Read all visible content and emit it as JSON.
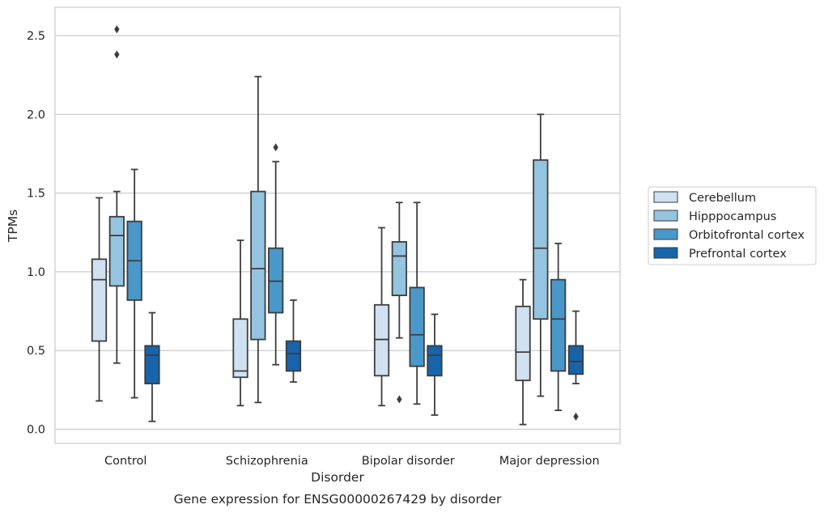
{
  "chart_data": {
    "type": "box",
    "caption": "Gene expression for ENSG00000267429 by disorder",
    "xlabel": "Disorder",
    "ylabel": "TPMs",
    "ylim": [
      -0.09,
      2.68
    ],
    "yticks": [
      0.0,
      0.5,
      1.0,
      1.5,
      2.0,
      2.5
    ],
    "ytick_labels": [
      "0.0",
      "0.5",
      "1.0",
      "1.5",
      "2.0",
      "2.5"
    ],
    "grid": "horizontal",
    "legend_position": "right",
    "categories": [
      "Control",
      "Schizophrenia",
      "Bipolar disorder",
      "Major depression"
    ],
    "series": [
      {
        "name": "Cerebellum",
        "color": "#d0e1f2",
        "boxes": [
          {
            "whislo": 0.18,
            "q1": 0.56,
            "med": 0.95,
            "q3": 1.08,
            "whishi": 1.47,
            "fliers": []
          },
          {
            "whislo": 0.15,
            "q1": 0.33,
            "med": 0.37,
            "q3": 0.7,
            "whishi": 1.2,
            "fliers": []
          },
          {
            "whislo": 0.15,
            "q1": 0.34,
            "med": 0.57,
            "q3": 0.79,
            "whishi": 1.28,
            "fliers": []
          },
          {
            "whislo": 0.03,
            "q1": 0.31,
            "med": 0.49,
            "q3": 0.78,
            "whishi": 0.95,
            "fliers": []
          }
        ]
      },
      {
        "name": "Hipppocampus",
        "color": "#94c4df",
        "boxes": [
          {
            "whislo": 0.42,
            "q1": 0.91,
            "med": 1.23,
            "q3": 1.35,
            "whishi": 1.51,
            "fliers": [
              2.38,
              2.54
            ]
          },
          {
            "whislo": 0.17,
            "q1": 0.57,
            "med": 1.02,
            "q3": 1.51,
            "whishi": 2.24,
            "fliers": []
          },
          {
            "whislo": 0.58,
            "q1": 0.85,
            "med": 1.1,
            "q3": 1.19,
            "whishi": 1.44,
            "fliers": [
              0.19
            ]
          },
          {
            "whislo": 0.21,
            "q1": 0.7,
            "med": 1.15,
            "q3": 1.71,
            "whishi": 2.0,
            "fliers": []
          }
        ]
      },
      {
        "name": "Orbitofrontal cortex",
        "color": "#4a98c9",
        "boxes": [
          {
            "whislo": 0.2,
            "q1": 0.82,
            "med": 1.07,
            "q3": 1.32,
            "whishi": 1.65,
            "fliers": []
          },
          {
            "whislo": 0.41,
            "q1": 0.74,
            "med": 0.94,
            "q3": 1.15,
            "whishi": 1.7,
            "fliers": [
              1.79
            ]
          },
          {
            "whislo": 0.16,
            "q1": 0.4,
            "med": 0.6,
            "q3": 0.9,
            "whishi": 1.44,
            "fliers": []
          },
          {
            "whislo": 0.12,
            "q1": 0.37,
            "med": 0.7,
            "q3": 0.95,
            "whishi": 1.18,
            "fliers": []
          }
        ]
      },
      {
        "name": "Prefrontal cortex",
        "color": "#1764ab",
        "boxes": [
          {
            "whislo": 0.05,
            "q1": 0.29,
            "med": 0.47,
            "q3": 0.53,
            "whishi": 0.74,
            "fliers": []
          },
          {
            "whislo": 0.3,
            "q1": 0.37,
            "med": 0.48,
            "q3": 0.56,
            "whishi": 0.82,
            "fliers": []
          },
          {
            "whislo": 0.09,
            "q1": 0.34,
            "med": 0.47,
            "q3": 0.53,
            "whishi": 0.73,
            "fliers": []
          },
          {
            "whislo": 0.29,
            "q1": 0.35,
            "med": 0.43,
            "q3": 0.53,
            "whishi": 0.75,
            "fliers": [
              0.08
            ]
          }
        ]
      }
    ]
  }
}
